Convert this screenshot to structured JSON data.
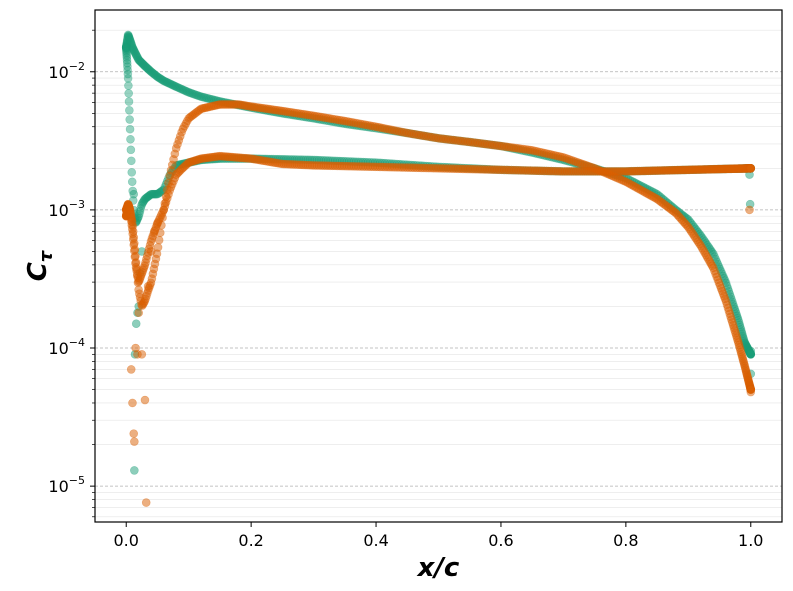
{
  "chart_data": {
    "type": "scatter",
    "xlabel": "x/c",
    "ylabel": "C_τ",
    "ylabel_main": "C",
    "ylabel_sub": "τ",
    "y_scale": "log",
    "xlim": [
      -0.05,
      1.05
    ],
    "ylim": [
      5.5e-06,
      0.028
    ],
    "x_ticks": [
      0.0,
      0.2,
      0.4,
      0.6,
      0.8,
      1.0
    ],
    "x_tick_labels": [
      "0.0",
      "0.2",
      "0.4",
      "0.6",
      "0.8",
      "1.0"
    ],
    "y_ticks": [
      {
        "value": 1e-05,
        "base": "10",
        "exp": "−5"
      },
      {
        "value": 0.0001,
        "base": "10",
        "exp": "−4"
      },
      {
        "value": 0.001,
        "base": "10",
        "exp": "−3"
      },
      {
        "value": 0.01,
        "base": "10",
        "exp": "−2"
      }
    ],
    "grid": "horizontal major and minor (y)",
    "legend": "none",
    "series": [
      {
        "color": "#1b9e77",
        "upper_surface": [
          [
            0.0,
            0.015
          ],
          [
            0.003,
            0.0185
          ],
          [
            0.006,
            0.017
          ],
          [
            0.01,
            0.015
          ],
          [
            0.015,
            0.0135
          ],
          [
            0.02,
            0.0122
          ],
          [
            0.03,
            0.011
          ],
          [
            0.04,
            0.01
          ],
          [
            0.05,
            0.0092
          ],
          [
            0.06,
            0.0086
          ],
          [
            0.08,
            0.0078
          ],
          [
            0.1,
            0.0071
          ],
          [
            0.12,
            0.0066
          ],
          [
            0.15,
            0.0061
          ],
          [
            0.2,
            0.0055
          ],
          [
            0.25,
            0.005
          ],
          [
            0.3,
            0.0046
          ],
          [
            0.35,
            0.0042
          ],
          [
            0.4,
            0.0039
          ],
          [
            0.45,
            0.0036
          ],
          [
            0.5,
            0.0033
          ],
          [
            0.55,
            0.0031
          ],
          [
            0.6,
            0.0029
          ],
          [
            0.65,
            0.0026
          ],
          [
            0.7,
            0.0023
          ],
          [
            0.75,
            0.002
          ],
          [
            0.8,
            0.0017
          ],
          [
            0.85,
            0.0013
          ],
          [
            0.88,
            0.001
          ],
          [
            0.9,
            0.00085
          ],
          [
            0.92,
            0.00065
          ],
          [
            0.94,
            0.00048
          ],
          [
            0.96,
            0.0003
          ],
          [
            0.98,
            0.00016
          ],
          [
            0.99,
            0.00011
          ],
          [
            1.0,
            9e-05
          ]
        ],
        "lower_surface": [
          [
            0.0,
            0.015
          ],
          [
            0.003,
            0.009
          ],
          [
            0.006,
            0.004
          ],
          [
            0.009,
            0.0018
          ],
          [
            0.012,
            0.001
          ],
          [
            0.015,
            0.0008
          ],
          [
            0.02,
            0.0009
          ],
          [
            0.025,
            0.0011
          ],
          [
            0.03,
            0.0012
          ],
          [
            0.04,
            0.0013
          ],
          [
            0.05,
            0.0013
          ],
          [
            0.06,
            0.0014
          ],
          [
            0.07,
            0.0018
          ],
          [
            0.08,
            0.0021
          ],
          [
            0.1,
            0.0022
          ],
          [
            0.12,
            0.0023
          ],
          [
            0.15,
            0.00235
          ],
          [
            0.2,
            0.00235
          ],
          [
            0.3,
            0.0023
          ],
          [
            0.4,
            0.0022
          ],
          [
            0.5,
            0.00205
          ],
          [
            0.6,
            0.00195
          ],
          [
            0.7,
            0.0019
          ],
          [
            0.8,
            0.0019
          ],
          [
            0.9,
            0.00195
          ],
          [
            1.0,
            0.002
          ]
        ],
        "scatter_points": [
          [
            0.012,
            0.0013
          ],
          [
            0.013,
            1.3e-05
          ],
          [
            0.014,
            9e-05
          ],
          [
            0.016,
            0.00015
          ],
          [
            0.018,
            0.00018
          ],
          [
            0.02,
            0.0002
          ],
          [
            0.022,
            0.00035
          ],
          [
            0.025,
            0.0005
          ],
          [
            0.998,
            0.0018
          ],
          [
            0.999,
            0.0011
          ],
          [
            1.0,
            9.5e-05
          ],
          [
            1.0,
            6.5e-05
          ]
        ]
      },
      {
        "color": "#d95f02",
        "upper_surface": [
          [
            0.0,
            0.001
          ],
          [
            0.003,
            0.0011
          ],
          [
            0.006,
            0.001
          ],
          [
            0.01,
            0.0008
          ],
          [
            0.015,
            0.00045
          ],
          [
            0.02,
            0.00026
          ],
          [
            0.025,
            0.0002
          ],
          [
            0.03,
            0.00022
          ],
          [
            0.035,
            0.00026
          ],
          [
            0.04,
            0.0003
          ],
          [
            0.05,
            0.0005
          ],
          [
            0.06,
            0.001
          ],
          [
            0.07,
            0.0018
          ],
          [
            0.08,
            0.0028
          ],
          [
            0.09,
            0.0038
          ],
          [
            0.1,
            0.0046
          ],
          [
            0.12,
            0.0054
          ],
          [
            0.15,
            0.0058
          ],
          [
            0.18,
            0.0058
          ],
          [
            0.2,
            0.0056
          ],
          [
            0.25,
            0.0052
          ],
          [
            0.3,
            0.0048
          ],
          [
            0.35,
            0.0044
          ],
          [
            0.4,
            0.004
          ],
          [
            0.45,
            0.0036
          ],
          [
            0.5,
            0.0033
          ],
          [
            0.55,
            0.0031
          ],
          [
            0.6,
            0.0029
          ],
          [
            0.65,
            0.0027
          ],
          [
            0.7,
            0.0024
          ],
          [
            0.75,
            0.002
          ],
          [
            0.8,
            0.0016
          ],
          [
            0.85,
            0.0012
          ],
          [
            0.88,
            0.00095
          ],
          [
            0.9,
            0.00075
          ],
          [
            0.92,
            0.00055
          ],
          [
            0.94,
            0.00038
          ],
          [
            0.96,
            0.00022
          ],
          [
            0.98,
            0.00011
          ],
          [
            0.99,
            7.5e-05
          ],
          [
            1.0,
            5e-05
          ]
        ],
        "lower_surface": [
          [
            0.0,
            0.0009
          ],
          [
            0.003,
            0.0011
          ],
          [
            0.006,
            0.001
          ],
          [
            0.01,
            0.0007
          ],
          [
            0.015,
            0.0004
          ],
          [
            0.02,
            0.0003
          ],
          [
            0.03,
            0.0004
          ],
          [
            0.04,
            0.0006
          ],
          [
            0.05,
            0.0008
          ],
          [
            0.06,
            0.001
          ],
          [
            0.07,
            0.0014
          ],
          [
            0.08,
            0.0018
          ],
          [
            0.09,
            0.002
          ],
          [
            0.1,
            0.0022
          ],
          [
            0.12,
            0.00235
          ],
          [
            0.15,
            0.00245
          ],
          [
            0.2,
            0.00235
          ],
          [
            0.25,
            0.00215
          ],
          [
            0.3,
            0.0021
          ],
          [
            0.4,
            0.00205
          ],
          [
            0.5,
            0.002
          ],
          [
            0.6,
            0.00195
          ],
          [
            0.7,
            0.0019
          ],
          [
            0.8,
            0.0019
          ],
          [
            0.9,
            0.00195
          ],
          [
            1.0,
            0.002
          ]
        ],
        "scatter_points": [
          [
            0.008,
            7e-05
          ],
          [
            0.01,
            4e-05
          ],
          [
            0.012,
            2.4e-05
          ],
          [
            0.013,
            2.1e-05
          ],
          [
            0.015,
            0.0001
          ],
          [
            0.018,
            9e-05
          ],
          [
            0.02,
            0.00018
          ],
          [
            0.025,
            9e-05
          ],
          [
            0.03,
            4.2e-05
          ],
          [
            0.032,
            7.6e-06
          ],
          [
            0.035,
            0.00028
          ],
          [
            0.04,
            0.0005
          ],
          [
            0.045,
            0.0007
          ],
          [
            0.05,
            0.0008
          ],
          [
            0.998,
            0.001
          ],
          [
            1.0,
            5e-05
          ],
          [
            1.0,
            4.8e-05
          ]
        ]
      }
    ]
  }
}
